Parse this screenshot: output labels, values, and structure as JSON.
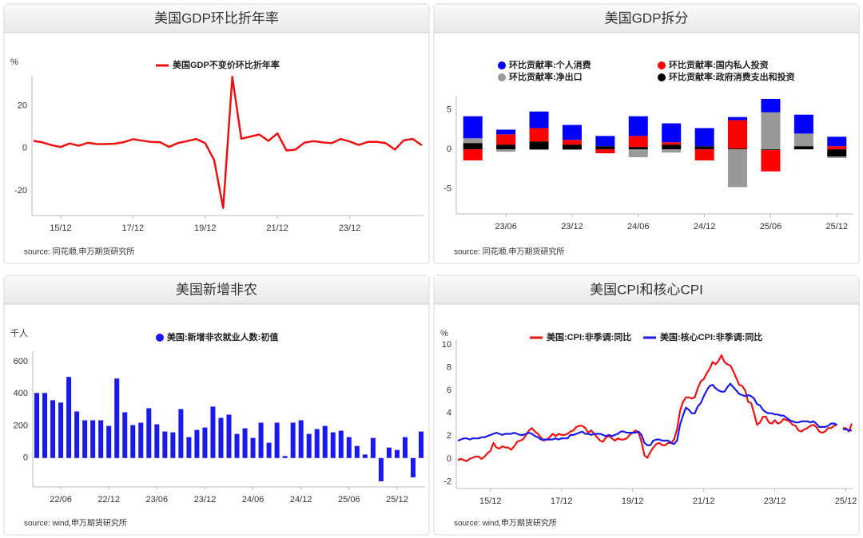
{
  "chart_data": [
    {
      "type": "line",
      "title": "美国GDP环比折年率",
      "unit": "%",
      "source": "source: 同花顺,申万期货研究所",
      "categories": [
        null,
        null,
        null,
        "15/12",
        null,
        null,
        null,
        null,
        null,
        null,
        null,
        "17/12",
        null,
        null,
        null,
        null,
        null,
        null,
        null,
        "19/12",
        null,
        null,
        null,
        null,
        null,
        null,
        null,
        "21/12",
        null,
        null,
        null,
        null,
        null,
        null,
        null,
        "23/12",
        null,
        null,
        null,
        null,
        null,
        null,
        null,
        null
      ],
      "series": [
        {
          "name": "美国GDP不变价环比折年率",
          "color": "#ee1111",
          "values": [
            3.5,
            2.8,
            1.5,
            0.6,
            2.3,
            1.2,
            2.6,
            2.0,
            2.0,
            2.2,
            2.9,
            4.3,
            3.6,
            3.0,
            2.9,
            0.7,
            2.5,
            3.4,
            4.4,
            2.5,
            -5.5,
            -28.0,
            33.5,
            4.5,
            5.5,
            6.5,
            3.5,
            7.0,
            -1.0,
            -0.6,
            2.7,
            3.4,
            2.8,
            2.4,
            4.4,
            3.2,
            1.6,
            3.0,
            3.1,
            2.4,
            -0.6,
            3.8,
            4.4,
            1.4
          ]
        }
      ],
      "ylim": [
        -31.5,
        34
      ],
      "yticks": [
        -20,
        0,
        20
      ]
    },
    {
      "type": "stacked_bar",
      "title": "美国GDP拆分",
      "source": "source: 同花顺,申万期货研究所",
      "categories": [
        null,
        "23/06",
        null,
        "23/12",
        null,
        "24/06",
        null,
        "24/12",
        null,
        "25/06",
        null,
        "25/12"
      ],
      "series": [
        {
          "name": "环比贡献率:个人消费",
          "color": "#0000ff",
          "values": [
            2.8,
            0.6,
            2.1,
            1.9,
            1.3,
            2.5,
            2.4,
            2.3,
            0.4,
            1.7,
            2.4,
            1.2
          ]
        },
        {
          "name": "环比贡献率:国内私人投资",
          "color": "#ff0000",
          "values": [
            -1.4,
            1.3,
            1.7,
            0.6,
            -0.5,
            1.4,
            0.3,
            -1.4,
            3.6,
            -2.7,
            0,
            0.4
          ]
        },
        {
          "name": "环比贡献率:净出口",
          "color": "#999999",
          "values": [
            0.6,
            -0.3,
            -0.1,
            -0.1,
            0,
            -1.0,
            -0.4,
            0,
            -4.8,
            4.7,
            1.6,
            -0.2
          ]
        },
        {
          "name": "环比贡献率:政府消费支出和投资",
          "color": "#000000",
          "values": [
            0.8,
            0.6,
            1.0,
            0.6,
            0.4,
            0.3,
            0.6,
            0.4,
            0.1,
            -0.1,
            0.4,
            -0.9
          ]
        }
      ],
      "ylim": [
        -8.2,
        6.8
      ],
      "yticks": [
        -5,
        0,
        5
      ]
    },
    {
      "type": "bar",
      "title": "美国新增非农",
      "unit": "千人",
      "source": "source: wind,申万期货研究所",
      "categories": [
        null,
        null,
        null,
        "22/06",
        null,
        null,
        null,
        null,
        null,
        "22/12",
        null,
        null,
        null,
        null,
        null,
        "23/06",
        null,
        null,
        null,
        null,
        null,
        "23/12",
        null,
        null,
        null,
        null,
        null,
        "24/06",
        null,
        null,
        null,
        null,
        null,
        "24/12",
        null,
        null,
        null,
        null,
        null,
        "25/06",
        null,
        null,
        null,
        null,
        null,
        "25/12",
        null,
        null,
        null
      ],
      "series": [
        {
          "name": "美国:新增非农就业人数:初值",
          "color": "#1a1aee",
          "values": [
            405,
            405,
            360,
            345,
            505,
            290,
            235,
            235,
            235,
            200,
            495,
            285,
            205,
            220,
            310,
            210,
            165,
            160,
            305,
            130,
            175,
            190,
            320,
            250,
            270,
            150,
            185,
            125,
            220,
            95,
            220,
            12,
            220,
            235,
            150,
            180,
            200,
            160,
            170,
            130,
            75,
            22,
            125,
            -145,
            65,
            50,
            130,
            -120,
            165
          ]
        }
      ],
      "ylim": [
        -180,
        665
      ],
      "yticks": [
        0,
        200,
        400,
        600
      ]
    },
    {
      "type": "line",
      "title": "美国CPI和核心CPI",
      "unit": "%",
      "source": "source: wind,申万期货研究所",
      "categories": [
        null,
        null,
        null,
        null,
        null,
        null,
        null,
        null,
        null,
        null,
        null,
        "15/12",
        null,
        null,
        null,
        null,
        null,
        null,
        null,
        null,
        null,
        null,
        null,
        null,
        null,
        null,
        null,
        null,
        null,
        null,
        null,
        null,
        null,
        null,
        null,
        "17/12",
        null,
        null,
        null,
        null,
        null,
        null,
        null,
        null,
        null,
        null,
        null,
        null,
        null,
        null,
        null,
        null,
        null,
        null,
        null,
        null,
        null,
        null,
        null,
        "19/12",
        null,
        null,
        null,
        null,
        null,
        null,
        null,
        null,
        null,
        null,
        null,
        null,
        null,
        null,
        null,
        null,
        null,
        null,
        null,
        null,
        null,
        null,
        null,
        "21/12",
        null,
        null,
        null,
        null,
        null,
        null,
        null,
        null,
        null,
        null,
        null,
        null,
        null,
        null,
        null,
        null,
        null,
        null,
        null,
        null,
        null,
        null,
        null,
        "23/12",
        null,
        null,
        null,
        null,
        null,
        null,
        null,
        null,
        null,
        null,
        null,
        null,
        null,
        null,
        null,
        null,
        null,
        null,
        null,
        null,
        null,
        null,
        null,
        "25/12",
        null,
        null
      ],
      "series": [
        {
          "name": "美国:CPI:非季调:同比",
          "color": "#ee1111",
          "values": [
            -0.1,
            0.0,
            -0.1,
            -0.2,
            0.0,
            0.1,
            0.2,
            0.2,
            0.0,
            0.2,
            0.5,
            0.7,
            1.4,
            1.0,
            0.9,
            1.1,
            1.0,
            1.0,
            0.8,
            1.1,
            1.5,
            1.6,
            1.7,
            2.1,
            2.5,
            2.7,
            2.4,
            2.2,
            1.9,
            1.6,
            1.7,
            1.9,
            2.2,
            2.0,
            2.2,
            2.1,
            2.1,
            2.2,
            2.4,
            2.5,
            2.8,
            2.9,
            2.9,
            2.7,
            2.3,
            2.5,
            2.2,
            1.9,
            1.6,
            1.5,
            1.9,
            2.0,
            1.8,
            1.6,
            1.8,
            1.7,
            1.7,
            1.8,
            2.1,
            2.3,
            2.5,
            2.3,
            1.5,
            0.3,
            0.1,
            0.6,
            1.0,
            1.3,
            1.4,
            1.2,
            1.2,
            1.4,
            1.4,
            1.7,
            2.6,
            4.2,
            5.0,
            5.4,
            5.4,
            5.3,
            5.4,
            6.2,
            6.8,
            7.0,
            7.5,
            7.9,
            8.5,
            8.3,
            8.6,
            9.1,
            8.5,
            8.3,
            8.2,
            7.7,
            7.1,
            6.5,
            6.4,
            6.0,
            5.0,
            4.9,
            4.0,
            3.0,
            3.2,
            3.7,
            3.7,
            3.2,
            3.1,
            3.4,
            3.1,
            3.2,
            3.5,
            3.4,
            3.3,
            3.0,
            2.9,
            2.5,
            2.4,
            2.6,
            2.7,
            2.9,
            3.0,
            2.8,
            2.4,
            2.3,
            2.4,
            2.7,
            2.7,
            2.9,
            3.0,
            null,
            2.7,
            2.7,
            2.4,
            3.1
          ]
        },
        {
          "name": "美国:核心CPI:非季调:同比",
          "color": "#1a1aee",
          "values": [
            1.6,
            1.7,
            1.8,
            1.8,
            1.7,
            1.8,
            1.8,
            1.8,
            1.9,
            1.9,
            2.0,
            2.1,
            2.2,
            2.3,
            2.2,
            2.1,
            2.2,
            2.2,
            2.2,
            2.3,
            2.2,
            2.1,
            2.1,
            2.2,
            2.3,
            2.2,
            2.0,
            1.9,
            1.7,
            1.7,
            1.7,
            1.7,
            1.7,
            1.8,
            1.7,
            1.8,
            1.8,
            1.8,
            2.1,
            2.1,
            2.2,
            2.3,
            2.4,
            2.2,
            2.2,
            2.1,
            2.2,
            2.2,
            2.2,
            2.1,
            2.0,
            2.1,
            2.0,
            2.1,
            2.2,
            2.4,
            2.4,
            2.3,
            2.3,
            2.3,
            2.3,
            2.4,
            2.1,
            1.4,
            1.2,
            1.2,
            1.6,
            1.7,
            1.7,
            1.6,
            1.6,
            1.6,
            1.4,
            1.3,
            1.6,
            3.0,
            3.8,
            4.5,
            4.3,
            4.0,
            4.0,
            4.6,
            4.9,
            5.5,
            6.0,
            6.4,
            6.5,
            6.2,
            6.0,
            5.9,
            5.9,
            6.3,
            6.6,
            6.3,
            6.0,
            5.7,
            5.6,
            5.5,
            5.6,
            5.5,
            5.3,
            4.8,
            4.7,
            4.3,
            4.1,
            4.0,
            4.0,
            3.9,
            3.9,
            3.8,
            3.8,
            3.6,
            3.4,
            3.3,
            3.2,
            3.2,
            3.3,
            3.3,
            3.3,
            3.2,
            3.3,
            3.1,
            2.8,
            2.8,
            2.8,
            2.9,
            3.1,
            3.1,
            3.0,
            null,
            2.6,
            2.6,
            2.5,
            2.5
          ]
        }
      ],
      "ylim": [
        -2.6,
        10.5
      ],
      "yticks": [
        -2,
        0,
        2,
        4,
        6,
        8,
        10
      ]
    }
  ]
}
